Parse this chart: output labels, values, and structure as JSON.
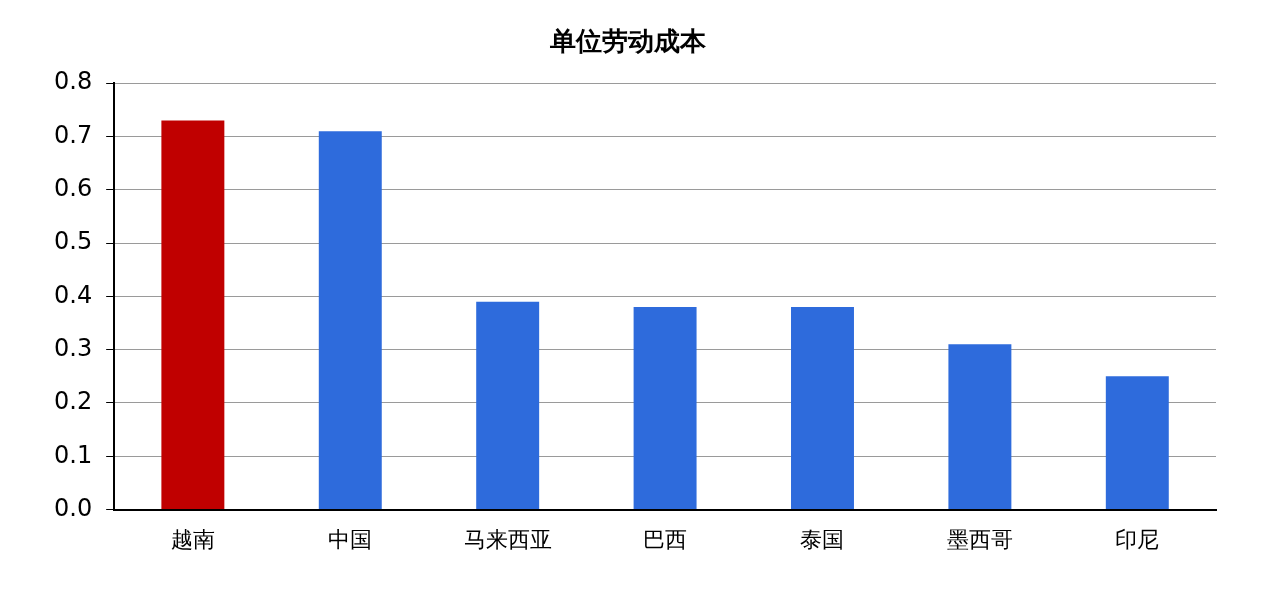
{
  "chart_data": {
    "type": "bar",
    "title": "单位劳动成本",
    "categories": [
      "越南",
      "中国",
      "马来西亚",
      "巴西",
      "泰国",
      "墨西哥",
      "印尼"
    ],
    "values": [
      0.73,
      0.71,
      0.39,
      0.38,
      0.38,
      0.31,
      0.25
    ],
    "colors": [
      "#c00000",
      "#2e6bdc",
      "#2e6bdc",
      "#2e6bdc",
      "#2e6bdc",
      "#2e6bdc",
      "#2e6bdc"
    ],
    "ylim": [
      0,
      0.8
    ],
    "yticks": [
      {
        "value": 0,
        "label": "0.0"
      },
      {
        "value": 0.1,
        "label": "0.1"
      },
      {
        "value": 0.2,
        "label": "0.2"
      },
      {
        "value": 0.3,
        "label": "0.3"
      },
      {
        "value": 0.4,
        "label": "0.4"
      },
      {
        "value": 0.5,
        "label": "0.5"
      },
      {
        "value": 0.6,
        "label": "0.6"
      },
      {
        "value": 0.7,
        "label": "0.7"
      },
      {
        "value": 0.8,
        "label": "0.8"
      }
    ],
    "grid": "y",
    "legend": false
  }
}
